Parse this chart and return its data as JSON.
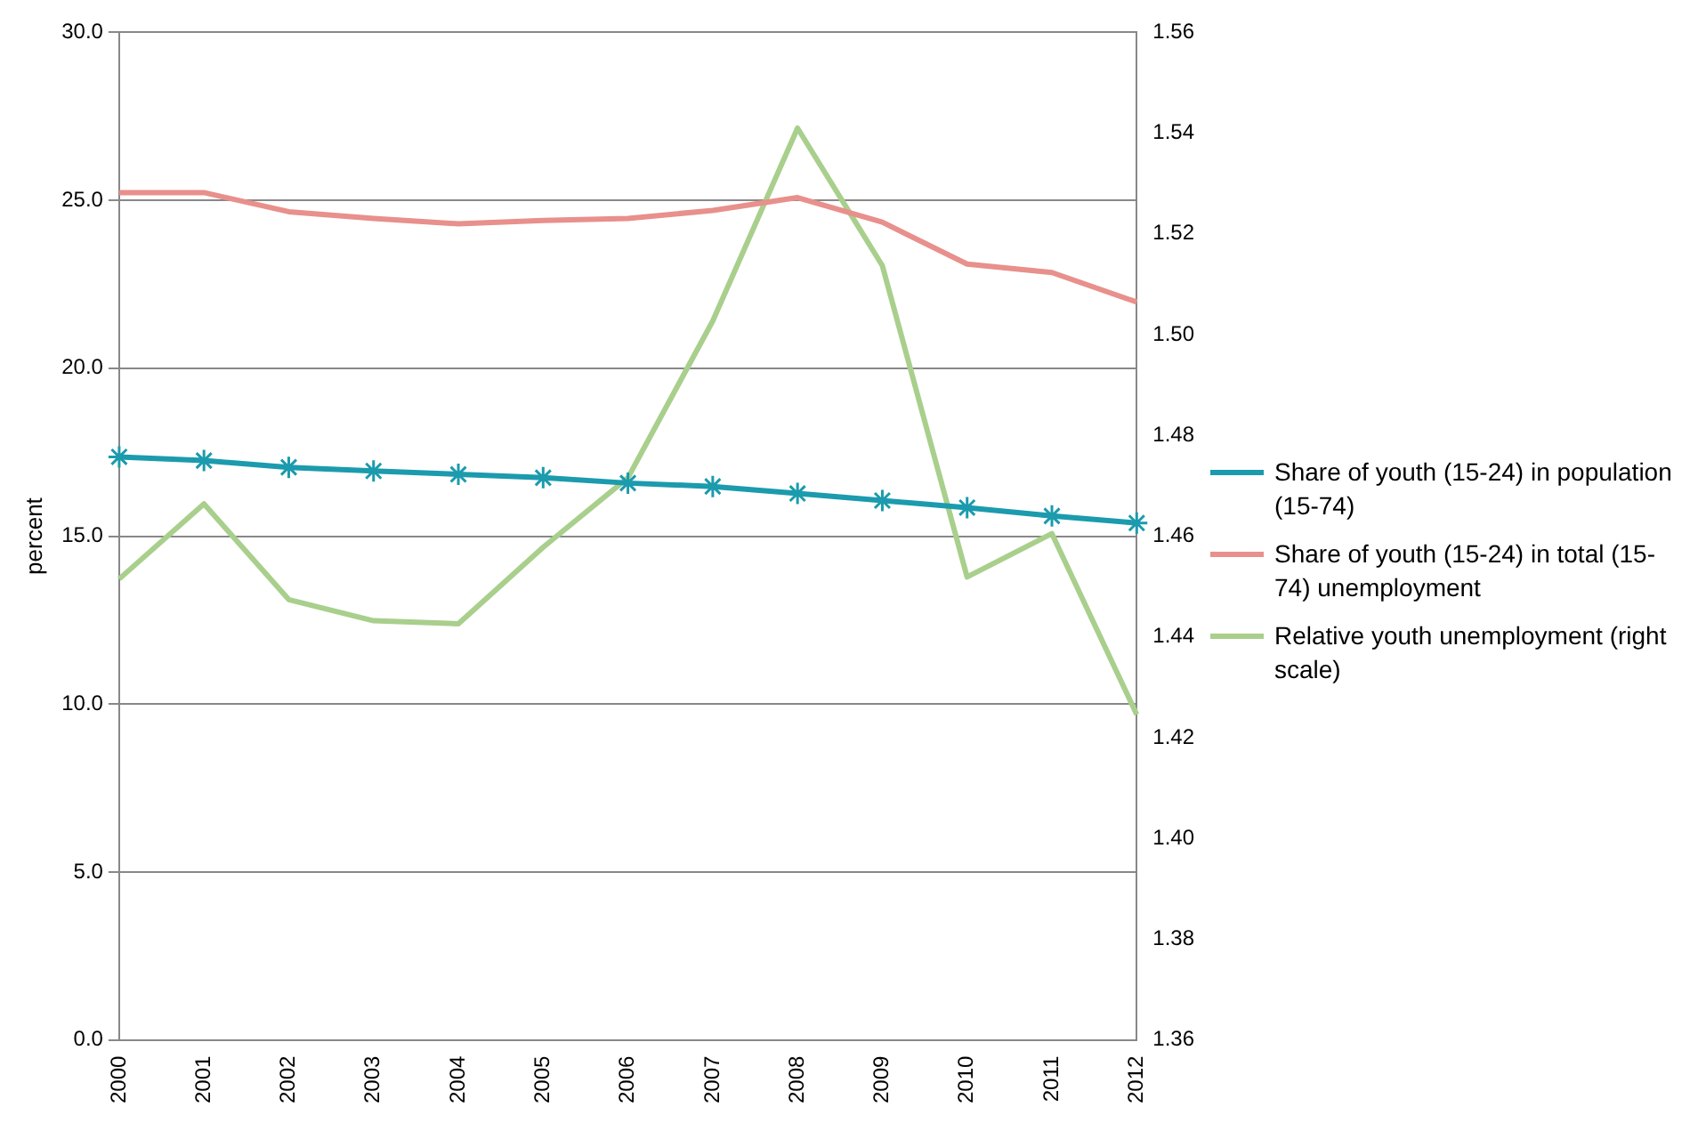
{
  "chart_data": {
    "type": "line",
    "categories": [
      "2000",
      "2001",
      "2002",
      "2003",
      "2004",
      "2005",
      "2006",
      "2007",
      "2008",
      "2009",
      "2010",
      "2011",
      "2012"
    ],
    "ylabel": "percent",
    "ylim": [
      0,
      30
    ],
    "yticks": [
      {
        "value": 0,
        "label": "0.0"
      },
      {
        "value": 5,
        "label": "5.0"
      },
      {
        "value": 10,
        "label": "10.0"
      },
      {
        "value": 15,
        "label": "15.0"
      },
      {
        "value": 20,
        "label": "20.0"
      },
      {
        "value": 25,
        "label": "25.0"
      },
      {
        "value": 30,
        "label": "30.0"
      }
    ],
    "y2lim": [
      1.36,
      1.56
    ],
    "y2ticks": [
      {
        "value": 1.36,
        "label": "1.36"
      },
      {
        "value": 1.38,
        "label": "1.38"
      },
      {
        "value": 1.4,
        "label": "1.40"
      },
      {
        "value": 1.42,
        "label": "1.42"
      },
      {
        "value": 1.44,
        "label": "1.44"
      },
      {
        "value": 1.46,
        "label": "1.46"
      },
      {
        "value": 1.48,
        "label": "1.48"
      },
      {
        "value": 1.5,
        "label": "1.50"
      },
      {
        "value": 1.52,
        "label": "1.52"
      },
      {
        "value": 1.54,
        "label": "1.54"
      },
      {
        "value": 1.56,
        "label": "1.56"
      }
    ],
    "grid": "y",
    "legend": "right",
    "series": [
      {
        "name": "Share of youth (15-24) in population (15-74)",
        "color": "#1b9bad",
        "marker": "cross",
        "values": [
          17.36,
          17.25,
          17.05,
          16.94,
          16.84,
          16.74,
          16.58,
          16.48,
          16.27,
          16.06,
          15.85,
          15.6,
          15.39
        ]
      },
      {
        "name": "Share of youth (15-24) in total (15-74) unemployment",
        "color": "#e8908c",
        "marker": "none",
        "values": [
          25.23,
          25.23,
          24.66,
          24.46,
          24.3,
          24.4,
          24.46,
          24.7,
          25.08,
          24.35,
          23.1,
          22.85,
          21.97
        ]
      },
      {
        "name": "Relative youth unemployment (right scale)",
        "color": "#a9cf8c",
        "marker": "none",
        "axis": "y2",
        "values": [
          1.4515,
          1.4664,
          1.4474,
          1.4432,
          1.4426,
          1.4578,
          1.4716,
          1.5027,
          1.541,
          1.5137,
          1.4519,
          1.4605,
          1.4246
        ]
      }
    ]
  }
}
